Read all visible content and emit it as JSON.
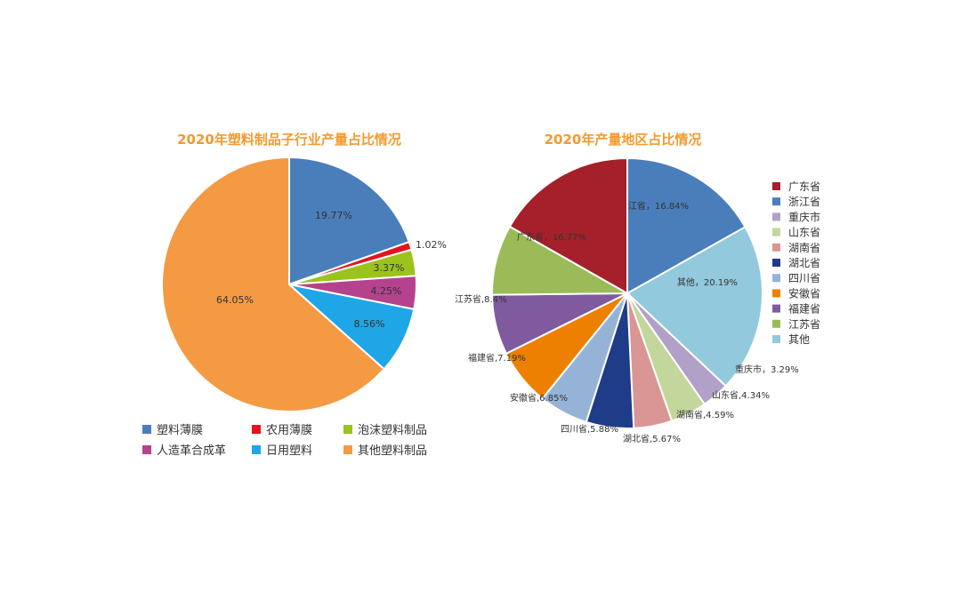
{
  "chart_data": [
    {
      "type": "pie",
      "title": "2020年塑料制品子行业产量占比情况",
      "slices": [
        {
          "name": "塑料薄膜",
          "value": 19.77,
          "label": "19.77%",
          "color": "#4a7ebb"
        },
        {
          "name": "农用薄膜",
          "value": 1.02,
          "label": "1.02%",
          "color": "#e3141f"
        },
        {
          "name": "泡沫塑料制品",
          "value": 3.37,
          "label": "3.37%",
          "color": "#9bc31c"
        },
        {
          "name": "人造革合成革",
          "value": 4.25,
          "label": "4.25%",
          "color": "#b5428d"
        },
        {
          "name": "日用塑料",
          "value": 8.56,
          "label": "8.56%",
          "color": "#1fa6e6"
        },
        {
          "name": "其他塑料制品",
          "value": 64.05,
          "label": "64.05%",
          "color": "#f39a43"
        }
      ],
      "legend_placement": "bottom"
    },
    {
      "type": "pie",
      "title": "2020年产量地区占比情况",
      "slices": [
        {
          "name": "浙江省",
          "value": 16.84,
          "label": "浙江省，16.84%",
          "color": "#4a7ebb"
        },
        {
          "name": "其他",
          "value": 20.19,
          "label": "其他，20.19%",
          "color": "#92c9dc"
        },
        {
          "name": "重庆市",
          "value": 3.29,
          "label": "重庆市，3.29%",
          "color": "#b1a0c7"
        },
        {
          "name": "山东省",
          "value": 4.34,
          "label": "山东省,4.34%",
          "color": "#c3d69b"
        },
        {
          "name": "湖南省",
          "value": 4.59,
          "label": "湖南省,4.59%",
          "color": "#d99694"
        },
        {
          "name": "湖北省",
          "value": 5.67,
          "label": "湖北省,5.67%",
          "color": "#1f3c88"
        },
        {
          "name": "四川省",
          "value": 5.88,
          "label": "四川省,5.88%",
          "color": "#95b3d7"
        },
        {
          "name": "安徽省",
          "value": 6.85,
          "label": "安徽省,6.85%",
          "color": "#ee8000"
        },
        {
          "name": "福建省",
          "value": 7.19,
          "label": "福建省,7.19%",
          "color": "#7f5a9f"
        },
        {
          "name": "江苏省",
          "value": 8.4,
          "label": "江苏省,8.4%",
          "color": "#9bbb59"
        },
        {
          "name": "广东省",
          "value": 16.77,
          "label": "广东省，16.77%",
          "color": "#a5202a"
        }
      ],
      "legend": [
        "广东省",
        "浙江省",
        "重庆市",
        "山东省",
        "湖南省",
        "湖北省",
        "四川省",
        "安徽省",
        "福建省",
        "江苏省",
        "其他"
      ],
      "legend_placement": "right"
    }
  ]
}
